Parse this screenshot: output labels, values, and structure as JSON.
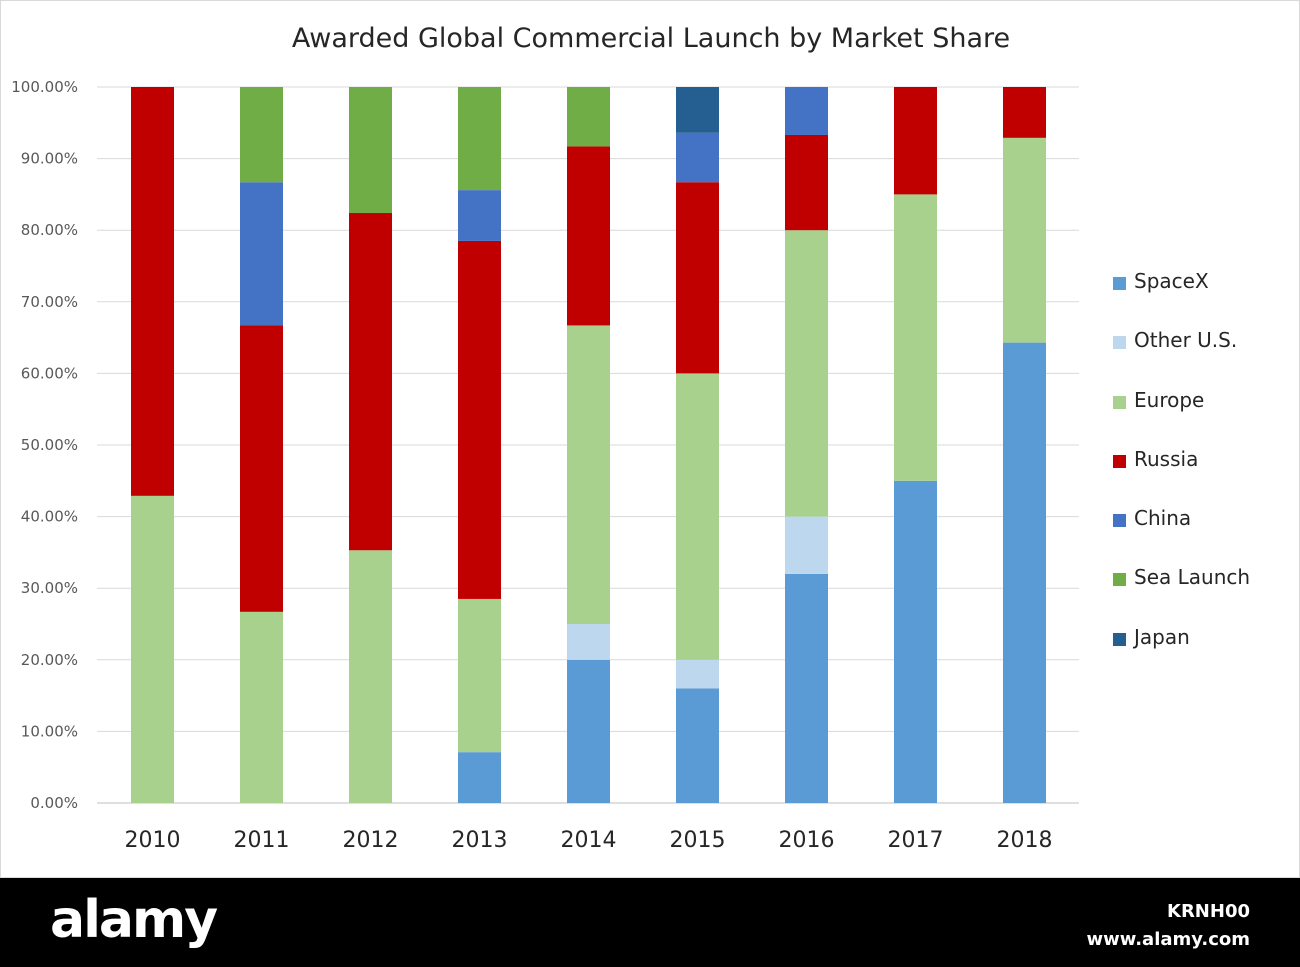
{
  "chart_data": {
    "type": "bar",
    "stacked": true,
    "title": "Awarded Global Commercial Launch by Market Share",
    "categories": [
      "2010",
      "2011",
      "2012",
      "2013",
      "2014",
      "2015",
      "2016",
      "2017",
      "2018"
    ],
    "ylim": [
      0,
      100
    ],
    "y_ticks": [
      "0.00%",
      "10.00%",
      "20.00%",
      "30.00%",
      "40.00%",
      "50.00%",
      "60.00%",
      "70.00%",
      "80.00%",
      "90.00%",
      "100.00%"
    ],
    "grid": true,
    "legend_position": "right",
    "series": [
      {
        "name": "SpaceX",
        "color": "#5b9bd5",
        "values": [
          0,
          0,
          0,
          7.1,
          20,
          16,
          32,
          45,
          64.3
        ]
      },
      {
        "name": "Other U.S.",
        "color": "#bdd7ee",
        "values": [
          0,
          0,
          0,
          0,
          5,
          4,
          8,
          0,
          0
        ]
      },
      {
        "name": "Europe",
        "color": "#a9d18e",
        "values": [
          42.9,
          26.7,
          35.3,
          21.4,
          41.7,
          40,
          40,
          40,
          28.6
        ]
      },
      {
        "name": "Russia",
        "color": "#c00000",
        "values": [
          57.1,
          40,
          47.1,
          50,
          25,
          26.7,
          13.3,
          15,
          7.1
        ]
      },
      {
        "name": "China",
        "color": "#4472c4",
        "values": [
          0,
          20,
          0,
          7.1,
          0,
          6.9,
          6.7,
          0,
          0
        ]
      },
      {
        "name": "Sea Launch",
        "color": "#70ad47",
        "values": [
          0,
          13.3,
          17.6,
          14.4,
          8.3,
          0,
          0,
          0,
          0
        ]
      },
      {
        "name": "Japan",
        "color": "#255e91",
        "values": [
          0,
          0,
          0,
          0,
          0,
          6.4,
          0,
          0,
          0
        ]
      }
    ]
  },
  "footer": {
    "logo": "alamy",
    "image_id": "KRNH00",
    "site": "www.alamy.com"
  }
}
